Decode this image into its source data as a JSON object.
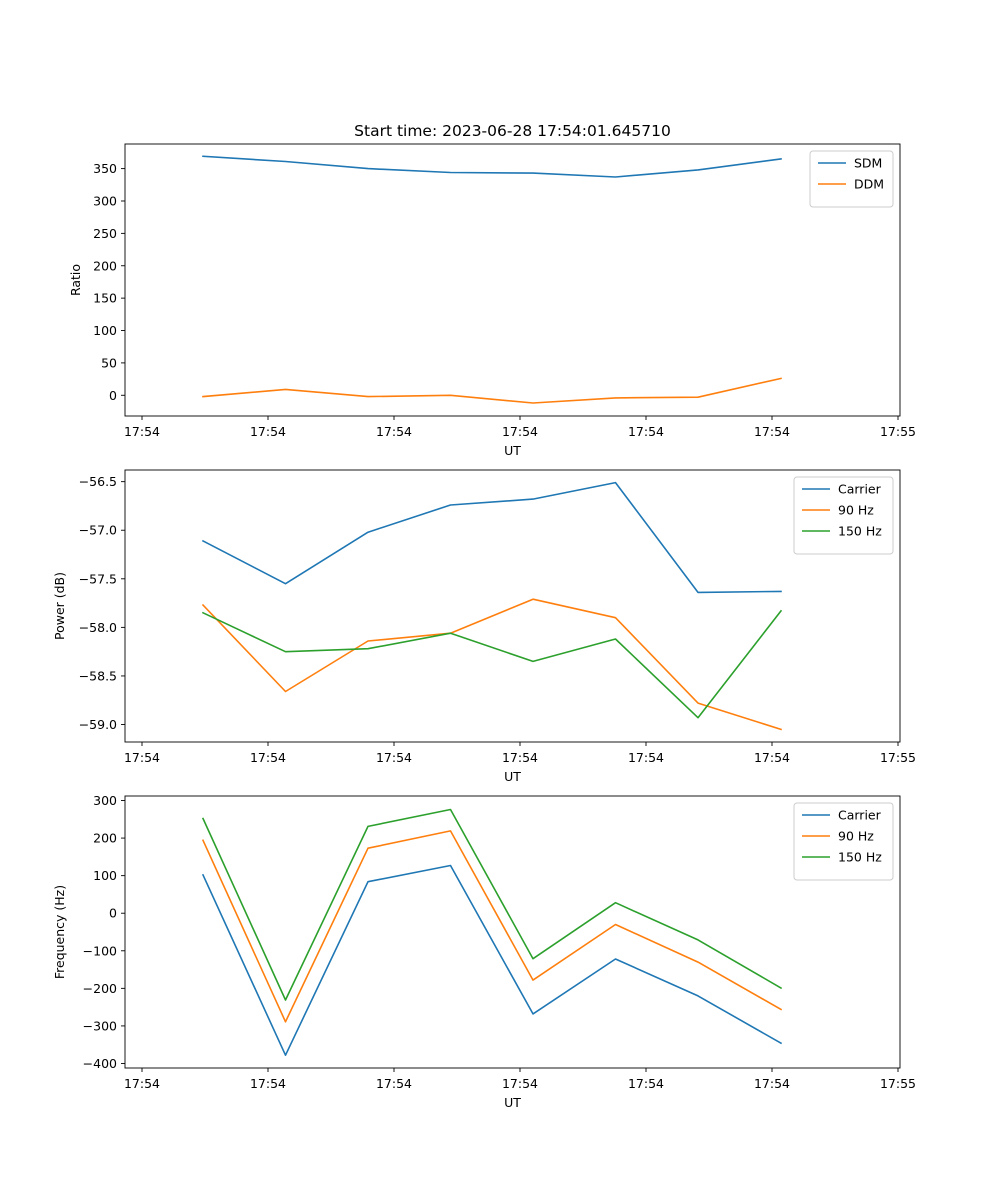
{
  "figure_title": "Start time: 2023-06-28 17:54:01.645710",
  "colors": {
    "blue": "#1f77b4",
    "orange": "#ff7f0e",
    "green": "#2ca02c"
  },
  "chart_data": [
    {
      "type": "line",
      "title": "Start time: 2023-06-28 17:54:01.645710",
      "xlabel": "UT",
      "ylabel": "Ratio",
      "x_tick_labels": [
        "17:54",
        "17:54",
        "17:54",
        "17:54",
        "17:54",
        "17:54",
        "17:54"
      ],
      "x_tick_labels_end": "17:55",
      "yticks": [
        0,
        50,
        100,
        150,
        200,
        250,
        300,
        350
      ],
      "ylim": [
        -32,
        388
      ],
      "grid": false,
      "legend_position": "upper right",
      "series": [
        {
          "name": "SDM",
          "color": "#1f77b4",
          "values": [
            369,
            361,
            350,
            344,
            343,
            337,
            348,
            365
          ]
        },
        {
          "name": "DDM",
          "color": "#ff7f0e",
          "values": [
            -2,
            9,
            -2,
            0,
            -12,
            -4,
            -3,
            26
          ]
        }
      ]
    },
    {
      "type": "line",
      "title": "",
      "xlabel": "UT",
      "ylabel": "Power (dB)",
      "x_tick_labels": [
        "17:54",
        "17:54",
        "17:54",
        "17:54",
        "17:54",
        "17:54",
        "17:54"
      ],
      "x_tick_labels_end": "17:55",
      "yticks": [
        -59.0,
        -58.5,
        -58.0,
        -57.5,
        -57.0,
        -56.5
      ],
      "ytick_labels": [
        "−59.0",
        "−58.5",
        "−58.0",
        "−57.5",
        "−57.0",
        "−56.5"
      ],
      "ylim": [
        -59.18,
        -56.38
      ],
      "grid": false,
      "legend_position": "upper right",
      "series": [
        {
          "name": "Carrier",
          "color": "#1f77b4",
          "values": [
            -57.11,
            -57.55,
            -57.02,
            -56.74,
            -56.68,
            -56.51,
            -57.64,
            -57.63
          ]
        },
        {
          "name": "90 Hz",
          "color": "#ff7f0e",
          "values": [
            -57.77,
            -58.66,
            -58.14,
            -58.06,
            -57.71,
            -57.9,
            -58.78,
            -59.05
          ]
        },
        {
          "name": "150 Hz",
          "color": "#2ca02c",
          "values": [
            -57.85,
            -58.25,
            -58.22,
            -58.06,
            -58.35,
            -58.12,
            -58.93,
            -57.83
          ]
        }
      ]
    },
    {
      "type": "line",
      "title": "",
      "xlabel": "UT",
      "ylabel": "Frequency (Hz)",
      "x_tick_labels": [
        "17:54",
        "17:54",
        "17:54",
        "17:54",
        "17:54",
        "17:54",
        "17:54"
      ],
      "x_tick_labels_end": "17:55",
      "yticks": [
        -400,
        -300,
        -200,
        -100,
        0,
        100,
        200,
        300
      ],
      "ytick_labels": [
        "−400",
        "−300",
        "−200",
        "−100",
        "0",
        "100",
        "200",
        "300"
      ],
      "ylim": [
        -412,
        312
      ],
      "grid": false,
      "legend_position": "upper right",
      "series": [
        {
          "name": "Carrier",
          "color": "#1f77b4",
          "values": [
            102,
            -378,
            84,
            127,
            -268,
            -122,
            -220,
            -346
          ]
        },
        {
          "name": "90 Hz",
          "color": "#ff7f0e",
          "values": [
            194,
            -289,
            173,
            219,
            -178,
            -30,
            -130,
            -256
          ]
        },
        {
          "name": "150 Hz",
          "color": "#2ca02c",
          "values": [
            252,
            -231,
            231,
            276,
            -121,
            28,
            -71,
            -199
          ]
        }
      ]
    }
  ]
}
